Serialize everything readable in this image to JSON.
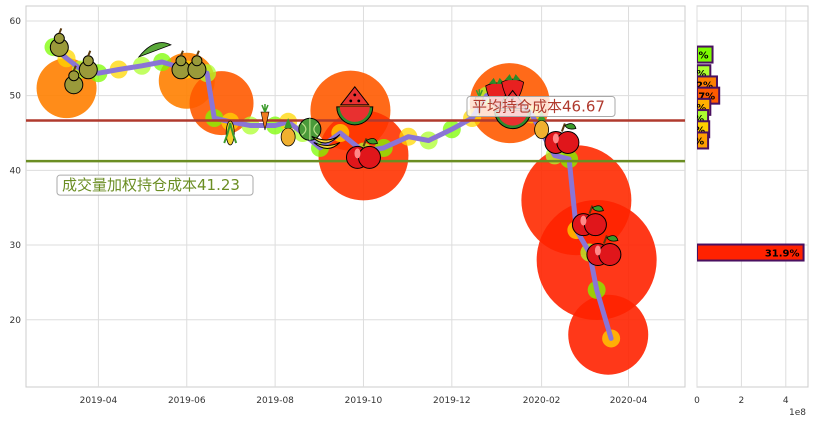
{
  "chart_data": [
    {
      "type": "line",
      "title": "",
      "xlabel": "",
      "ylabel": "",
      "grid": true,
      "xlim": [
        "2019-02-10",
        "2020-05-10"
      ],
      "ylim": [
        11,
        62
      ],
      "x_ticks": [
        "2019-04",
        "2019-06",
        "2019-08",
        "2019-10",
        "2019-12",
        "2020-02",
        "2020-04"
      ],
      "y_ticks": [
        20,
        30,
        40,
        50,
        60
      ],
      "series": [
        {
          "line_color": "#8a75d6",
          "points": [
            [
              "2019-03-01",
              56.5
            ],
            [
              "2019-03-10",
              55.0
            ],
            [
              "2019-03-20",
              53.5
            ],
            [
              "2019-04-01",
              53.0
            ],
            [
              "2019-04-15",
              53.5
            ],
            [
              "2019-05-01",
              54.0
            ],
            [
              "2019-05-15",
              54.5
            ],
            [
              "2019-06-01",
              53.5
            ],
            [
              "2019-06-15",
              53.0
            ],
            [
              "2019-06-20",
              47.0
            ],
            [
              "2019-07-01",
              46.5
            ],
            [
              "2019-07-15",
              46.0
            ],
            [
              "2019-08-01",
              46.0
            ],
            [
              "2019-08-10",
              46.5
            ],
            [
              "2019-08-20",
              45.0
            ],
            [
              "2019-09-01",
              43.0
            ],
            [
              "2019-09-15",
              45.0
            ],
            [
              "2019-10-01",
              42.5
            ],
            [
              "2019-10-15",
              43.0
            ],
            [
              "2019-11-01",
              44.5
            ],
            [
              "2019-11-15",
              44.0
            ],
            [
              "2019-12-01",
              45.5
            ],
            [
              "2019-12-15",
              47.0
            ],
            [
              "2019-12-25",
              50.0
            ],
            [
              "2020-01-10",
              50.5
            ],
            [
              "2020-01-25",
              47.5
            ],
            [
              "2020-02-10",
              42.0
            ],
            [
              "2020-02-20",
              41.5
            ],
            [
              "2020-02-25",
              32.0
            ],
            [
              "2020-03-05",
              29.0
            ],
            [
              "2020-03-10",
              24.0
            ],
            [
              "2020-03-20",
              17.5
            ]
          ]
        }
      ],
      "reference_lines": [
        {
          "label": "平均持仓成本46.67",
          "value": 46.67,
          "color": "#b03a2e"
        },
        {
          "label": "成交量加权持仓成本41.23",
          "value": 41.23,
          "color": "#6b8e23"
        }
      ],
      "markers": [
        {
          "date": "2019-03-05",
          "value": 57.0,
          "icon": "pear-icon"
        },
        {
          "date": "2019-03-15",
          "value": 52.0,
          "icon": "pear-icon"
        },
        {
          "date": "2019-03-25",
          "value": 54.0,
          "icon": "pear-icon"
        },
        {
          "date": "2019-05-10",
          "value": 56.0,
          "icon": "pea-icon"
        },
        {
          "date": "2019-05-28",
          "value": 54.0,
          "icon": "pear-icon"
        },
        {
          "date": "2019-06-08",
          "value": 54.0,
          "icon": "pear-icon"
        },
        {
          "date": "2019-07-01",
          "value": 45.0,
          "icon": "corn-icon"
        },
        {
          "date": "2019-07-25",
          "value": 47.0,
          "icon": "carrot-icon"
        },
        {
          "date": "2019-08-10",
          "value": 45.0,
          "icon": "pineapple-icon"
        },
        {
          "date": "2019-08-25",
          "value": 45.5,
          "icon": "melon-icon"
        },
        {
          "date": "2019-09-05",
          "value": 44.0,
          "icon": "banana-icon"
        },
        {
          "date": "2019-09-25",
          "value": 48.5,
          "icon": "watermelon-icon"
        },
        {
          "date": "2019-10-01",
          "value": 42.0,
          "icon": "apple-icon"
        },
        {
          "date": "2019-12-20",
          "value": 49.0,
          "icon": "carrot-icon"
        },
        {
          "date": "2020-01-01",
          "value": 50.5,
          "icon": "strawberry-icon"
        },
        {
          "date": "2020-01-12",
          "value": 51.0,
          "icon": "strawberry-icon"
        },
        {
          "date": "2020-01-12",
          "value": 48.0,
          "icon": "watermelon-icon"
        },
        {
          "date": "2020-02-01",
          "value": 46.0,
          "icon": "pineapple-icon"
        },
        {
          "date": "2020-02-15",
          "value": 44.0,
          "icon": "apple-icon"
        },
        {
          "date": "2020-03-05",
          "value": 33.0,
          "icon": "apple-icon"
        },
        {
          "date": "2020-03-15",
          "value": 29.0,
          "icon": "apple-icon"
        }
      ],
      "bubbles": [
        {
          "date": "2019-03-10",
          "value": 51,
          "color": "#ff7f00",
          "size": 30
        },
        {
          "date": "2019-06-01",
          "value": 52,
          "color": "#ff7f00",
          "size": 28
        },
        {
          "date": "2019-06-25",
          "value": 49,
          "color": "#ff5a00",
          "size": 32
        },
        {
          "date": "2019-09-22",
          "value": 48,
          "color": "#ff5a00",
          "size": 40
        },
        {
          "date": "2019-10-01",
          "value": 42,
          "color": "#ff3300",
          "size": 45
        },
        {
          "date": "2020-01-10",
          "value": 49,
          "color": "#ff5a00",
          "size": 40
        },
        {
          "date": "2020-02-25",
          "value": 36,
          "color": "#ff2a00",
          "size": 55
        },
        {
          "date": "2020-03-10",
          "value": 28,
          "color": "#ff2200",
          "size": 60
        },
        {
          "date": "2020-03-18",
          "value": 18,
          "color": "#ff2200",
          "size": 40
        }
      ]
    },
    {
      "type": "bar",
      "orientation": "horizontal",
      "xlim": [
        0,
        5
      ],
      "x_ticks": [
        0,
        2,
        4
      ],
      "x_scale_label": "1e8",
      "bars": [
        {
          "price": 55.5,
          "value": 0.7,
          "label": "%",
          "color": "#7cfc00"
        },
        {
          "price": 53.0,
          "value": 0.6,
          "label": "%",
          "color": "#adff2f"
        },
        {
          "price": 51.5,
          "value": 0.9,
          "label": "2%",
          "color": "#ff7f00"
        },
        {
          "price": 50.0,
          "value": 1.0,
          "label": ".7%",
          "color": "#ff5a00"
        },
        {
          "price": 48.5,
          "value": 0.6,
          "label": "%",
          "color": "#ffb000"
        },
        {
          "price": 47.0,
          "value": 0.5,
          "label": "%",
          "color": "#adff2f"
        },
        {
          "price": 45.5,
          "value": 0.55,
          "label": "%",
          "color": "#ffd000"
        },
        {
          "price": 44.0,
          "value": 0.5,
          "label": "0%",
          "color": "#ffa000"
        },
        {
          "price": 29.0,
          "value": 4.8,
          "label": "31.9%",
          "color": "#ff2200"
        }
      ]
    }
  ]
}
